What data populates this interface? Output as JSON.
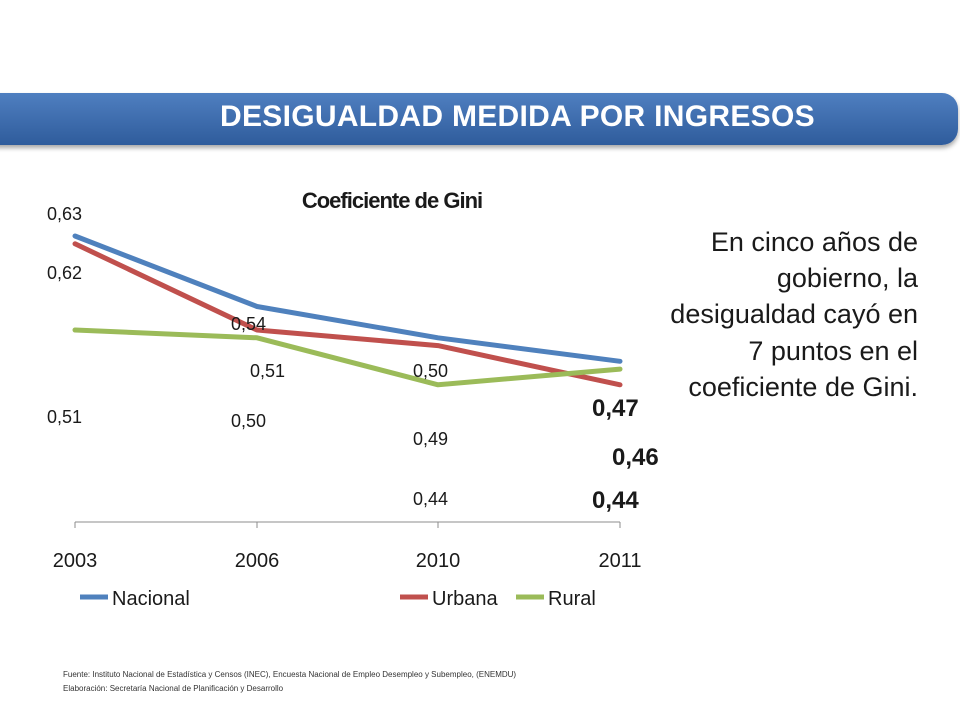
{
  "header": {
    "title": "DESIGUALDAD MEDIDA POR INGRESOS"
  },
  "side_note": "En cinco años de gobierno, la desigualdad cayó en 7 puntos en el coeficiente de Gini.",
  "footnotes": {
    "source": "Fuente: Instituto Nacional de Estadística y Censos (INEC), Encuesta Nacional de Empleo Desempleo y Subempleo, (ENEMDU)",
    "elaboration": "Elaboración: Secretaría Nacional de Planificación y Desarrollo"
  },
  "chart_data": {
    "type": "line",
    "title": "Coeficiente de Gini",
    "categories": [
      "2003",
      "2006",
      "2010",
      "2011"
    ],
    "ylim": [
      0.4,
      0.65
    ],
    "grid": false,
    "legend_position": "bottom",
    "series": [
      {
        "name": "Nacional",
        "color": "#4f81bd",
        "values": [
          0.63,
          0.54,
          0.5,
          0.47
        ],
        "labels": [
          "0,63",
          "0,54",
          "0,50",
          "0,47"
        ]
      },
      {
        "name": "Urbana",
        "color": "#c0504d",
        "values": [
          0.62,
          0.51,
          0.49,
          0.44
        ],
        "labels": [
          "0,62",
          "0,51",
          "0,49",
          "0,44"
        ]
      },
      {
        "name": "Rural",
        "color": "#9bbb59",
        "values": [
          0.51,
          0.5,
          0.44,
          0.46
        ],
        "labels": [
          "0,51",
          "0,50",
          "0,44",
          "0,46"
        ]
      }
    ]
  }
}
